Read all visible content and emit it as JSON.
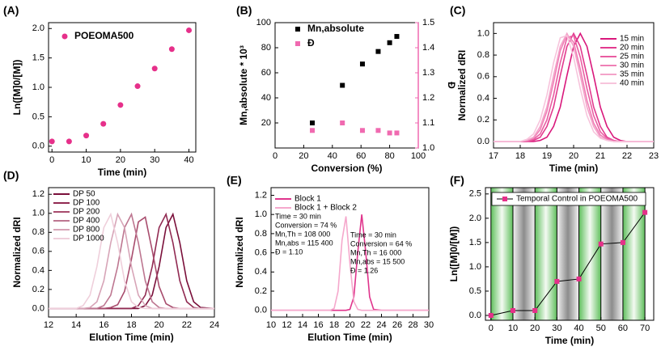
{
  "chart_data": [
    {
      "panel": "(A)",
      "type": "scatter",
      "x_label": "Time (min)",
      "y_label": "Ln([M]0/[M])",
      "x": [
        0,
        5,
        10,
        15,
        20,
        25,
        30,
        35,
        40
      ],
      "series": [
        {
          "name": "POEOMA500",
          "color": "#e6308a",
          "marker": "circle",
          "values": [
            0.08,
            0.08,
            0.18,
            0.38,
            0.7,
            1.02,
            1.32,
            1.65,
            1.97
          ]
        }
      ],
      "xlim": [
        -1,
        42
      ],
      "ylim": [
        -0.1,
        2.1
      ],
      "xticks": [
        0,
        10,
        20,
        30,
        40
      ],
      "yticks": [
        {
          "value": 0,
          "label": "0.0"
        },
        {
          "value": 0.5,
          "label": "0.5"
        },
        {
          "value": 1,
          "label": "1.0"
        },
        {
          "value": 1.5,
          "label": "1.5"
        },
        {
          "value": 2,
          "label": "2.0"
        }
      ],
      "legend": "upper left"
    },
    {
      "panel": "(B)",
      "type": "scatter",
      "x_label": "Conversion (%)",
      "y_label": "Mn,absolute * 10³",
      "y2_label": "Đ",
      "x": [
        26,
        47,
        61,
        72,
        80,
        85
      ],
      "series": [
        {
          "name": "Mn,absolute",
          "color": "#000000",
          "marker": "square",
          "values": [
            20,
            50,
            67,
            77,
            84,
            89
          ]
        },
        {
          "name": "Đ",
          "color": "#f06ab0",
          "marker": "square",
          "axis": "y2",
          "values": [
            1.07,
            1.1,
            1.07,
            1.07,
            1.06,
            1.06
          ]
        }
      ],
      "xlim": [
        0,
        100
      ],
      "ylim": [
        0,
        100
      ],
      "y2lim": [
        1.0,
        1.5
      ],
      "xticks": [
        0,
        20,
        40,
        60,
        80,
        100
      ],
      "yticks": [
        20,
        40,
        60,
        80,
        100
      ],
      "y2ticks": [
        {
          "value": 1.0,
          "label": "1.0"
        },
        {
          "value": 1.1,
          "label": "1.1"
        },
        {
          "value": 1.2,
          "label": "1.2"
        },
        {
          "value": 1.3,
          "label": "1.3"
        },
        {
          "value": 1.4,
          "label": "1.4"
        },
        {
          "value": 1.5,
          "label": "1.5"
        }
      ],
      "legend": "upper left"
    },
    {
      "panel": "(C)",
      "type": "line",
      "x_label": "Time (min)",
      "y_label": "Normalized dRI",
      "x": [
        17,
        18,
        18.25,
        18.5,
        18.75,
        19,
        19.25,
        19.5,
        19.75,
        20,
        20.25,
        20.5,
        20.75,
        21,
        21.25,
        21.5,
        21.75,
        22,
        23
      ],
      "series": [
        {
          "name": "15 min",
          "color": "#d9187c",
          "values": [
            0,
            0,
            0,
            0,
            0.01,
            0.04,
            0.14,
            0.32,
            0.61,
            0.88,
            1,
            0.88,
            0.61,
            0.32,
            0.14,
            0.04,
            0.01,
            0,
            0
          ]
        },
        {
          "name": "20 min",
          "color": "#e23b8f",
          "values": [
            0,
            0,
            0,
            0.01,
            0.04,
            0.14,
            0.32,
            0.61,
            0.88,
            1,
            0.88,
            0.61,
            0.32,
            0.14,
            0.04,
            0.01,
            0,
            0,
            0
          ]
        },
        {
          "name": "25 min",
          "color": "#e95da2",
          "values": [
            0,
            0,
            0,
            0.02,
            0.07,
            0.2,
            0.43,
            0.73,
            0.96,
            0.98,
            0.78,
            0.49,
            0.24,
            0.09,
            0.03,
            0.01,
            0,
            0,
            0
          ]
        },
        {
          "name": "30 min",
          "color": "#ef80b6",
          "values": [
            0,
            0,
            0.01,
            0.03,
            0.11,
            0.28,
            0.55,
            0.84,
            0.99,
            0.92,
            0.67,
            0.38,
            0.17,
            0.06,
            0.02,
            0,
            0,
            0,
            0
          ]
        },
        {
          "name": "35 min",
          "color": "#f3a3c9",
          "values": [
            0,
            0,
            0.01,
            0.04,
            0.14,
            0.32,
            0.61,
            0.88,
            1,
            0.88,
            0.61,
            0.32,
            0.14,
            0.04,
            0.01,
            0,
            0,
            0,
            0
          ]
        },
        {
          "name": "40 min",
          "color": "#f7c4dc",
          "values": [
            0,
            0,
            0.02,
            0.07,
            0.2,
            0.43,
            0.73,
            0.96,
            0.98,
            0.78,
            0.49,
            0.24,
            0.09,
            0.03,
            0.01,
            0,
            0,
            0,
            0
          ]
        }
      ],
      "xlim": [
        17,
        23
      ],
      "ylim": [
        -0.06,
        1.1
      ],
      "xticks": [
        17,
        18,
        19,
        20,
        21,
        22,
        23
      ],
      "yticks": [
        {
          "value": 0,
          "label": "0.0"
        },
        {
          "value": 0.2,
          "label": "0.2"
        },
        {
          "value": 0.4,
          "label": "0.4"
        },
        {
          "value": 0.6,
          "label": "0.6"
        },
        {
          "value": 0.8,
          "label": "0.8"
        },
        {
          "value": 1,
          "label": "1.0"
        }
      ],
      "legend": "upper right"
    },
    {
      "panel": "(D)",
      "type": "line",
      "x_label": "Elution Time (min)",
      "y_label": "Normalized dRI",
      "x": [
        12,
        14,
        14.5,
        15,
        15.5,
        16,
        16.5,
        17,
        17.5,
        18,
        18.5,
        19,
        19.5,
        20,
        20.5,
        21,
        21.5,
        22,
        22.5,
        23,
        24
      ],
      "series": [
        {
          "name": "DP 50",
          "color": "#7a0f3a",
          "values": [
            0,
            0,
            0,
            0,
            0,
            0,
            0,
            0,
            0,
            0,
            0,
            0.03,
            0.14,
            0.44,
            0.85,
            0.99,
            0.69,
            0.29,
            0.07,
            0.01,
            0
          ]
        },
        {
          "name": "DP 100",
          "color": "#912a52",
          "values": [
            0,
            0,
            0,
            0,
            0,
            0,
            0,
            0,
            0,
            0,
            0.03,
            0.14,
            0.44,
            0.85,
            0.99,
            0.69,
            0.29,
            0.07,
            0.01,
            0,
            0
          ]
        },
        {
          "name": "DP 200",
          "color": "#a84c6d",
          "values": [
            0,
            0,
            0,
            0,
            0,
            0,
            0.01,
            0.04,
            0.18,
            0.52,
            0.91,
            0.96,
            0.61,
            0.23,
            0.05,
            0.01,
            0,
            0,
            0,
            0,
            0
          ]
        },
        {
          "name": "DP 400",
          "color": "#bd7690",
          "values": [
            0,
            0,
            0,
            0,
            0,
            0.03,
            0.14,
            0.44,
            0.85,
            0.99,
            0.69,
            0.29,
            0.07,
            0.01,
            0,
            0,
            0,
            0,
            0,
            0,
            0
          ]
        },
        {
          "name": "DP 800",
          "color": "#d7a4b7",
          "values": [
            0,
            0,
            0,
            0.01,
            0.07,
            0.29,
            0.69,
            0.99,
            0.85,
            0.44,
            0.14,
            0.03,
            0,
            0,
            0,
            0,
            0,
            0,
            0,
            0,
            0
          ]
        },
        {
          "name": "DP 1000",
          "color": "#efcfdb",
          "values": [
            0,
            0,
            0.03,
            0.14,
            0.44,
            0.85,
            0.99,
            0.69,
            0.29,
            0.07,
            0.01,
            0,
            0,
            0,
            0,
            0,
            0,
            0,
            0,
            0,
            0
          ]
        }
      ],
      "xlim": [
        12,
        24
      ],
      "ylim": [
        -0.09,
        1.27
      ],
      "xticks": [
        12,
        14,
        16,
        18,
        20,
        22,
        24
      ],
      "yticks": [
        {
          "value": 0,
          "label": "0.0"
        },
        {
          "value": 0.2,
          "label": "0.2"
        },
        {
          "value": 0.4,
          "label": "0.4"
        },
        {
          "value": 0.6,
          "label": "0.6"
        },
        {
          "value": 0.8,
          "label": "0.8"
        },
        {
          "value": 1,
          "label": "1.0"
        },
        {
          "value": 1.2,
          "label": "1.2"
        }
      ],
      "legend": "upper left"
    },
    {
      "panel": "(E)",
      "type": "line",
      "x_label": "Elution Time (min)",
      "y_label": "Normalized dRI",
      "x": [
        10,
        16,
        17,
        17.5,
        18,
        18.5,
        19,
        19.5,
        20,
        20.5,
        21,
        21.5,
        22,
        22.5,
        23,
        24,
        30
      ],
      "series": [
        {
          "name": "Block 1",
          "color": "#e0348c",
          "values": [
            0,
            0,
            0,
            0,
            0,
            0,
            0,
            0,
            0.01,
            0.14,
            0.61,
            1,
            0.61,
            0.14,
            0.01,
            0,
            0
          ]
        },
        {
          "name": "Block 1 + Block 2",
          "color": "#f5a8cc",
          "values": [
            0,
            0,
            0,
            0,
            0.02,
            0.2,
            0.73,
            0.98,
            0.49,
            0.09,
            0.01,
            0,
            0,
            0,
            0,
            0,
            0
          ]
        }
      ],
      "annotations": [
        [
          "Time = 30 min",
          "Conversion = 74 %",
          "Mn,Th = 108 000",
          "Mn,abs = 115 400",
          "Đ = 1.10"
        ],
        [
          "Time = 30 min",
          "Conversion = 64 %",
          "Mn,Th = 16 000",
          "Mn,abs = 15 500",
          "Đ = 1.26"
        ]
      ],
      "xlim": [
        10,
        30
      ],
      "ylim": [
        -0.07,
        1.28
      ],
      "xticks": [
        10,
        12,
        14,
        16,
        18,
        20,
        22,
        24,
        26,
        28,
        30
      ],
      "yticks": [
        {
          "value": 0,
          "label": "0.0"
        },
        {
          "value": 0.2,
          "label": "0.2"
        },
        {
          "value": 0.4,
          "label": "0.4"
        },
        {
          "value": 0.6,
          "label": "0.6"
        },
        {
          "value": 0.8,
          "label": "0.8"
        },
        {
          "value": 1,
          "label": "1.0"
        },
        {
          "value": 1.2,
          "label": "1.2"
        }
      ],
      "legend": "upper left"
    },
    {
      "panel": "(F)",
      "type": "line",
      "markers": true,
      "x_label": "Time (min)",
      "y_label": "Ln([M]0/[M])",
      "x": [
        0,
        10,
        20,
        30,
        40,
        50,
        60,
        70
      ],
      "series": [
        {
          "name": "Temporal Control in POEOMA500",
          "color": "#e6308a",
          "line_color": "#000000",
          "values": [
            0,
            0.1,
            0.1,
            0.7,
            0.75,
            1.47,
            1.5,
            2.12
          ]
        }
      ],
      "xlim": [
        -2.5,
        74
      ],
      "ylim": [
        -0.1,
        2.63
      ],
      "xticks": [
        0,
        10,
        20,
        30,
        40,
        50,
        60,
        70
      ],
      "yticks": [
        {
          "value": 0,
          "label": "0.0"
        },
        {
          "value": 0.5,
          "label": "0.5"
        },
        {
          "value": 1,
          "label": "1.0"
        },
        {
          "value": 1.5,
          "label": "1.5"
        },
        {
          "value": 2,
          "label": "2.0"
        },
        {
          "value": 2.5,
          "label": "2.5"
        }
      ],
      "legend": "upper left"
    }
  ]
}
